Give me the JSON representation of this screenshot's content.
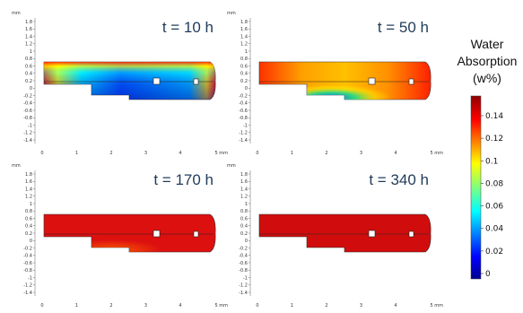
{
  "panels": [
    {
      "label": "t = 10 h",
      "mode": "low"
    },
    {
      "label": "t = 50 h",
      "mode": "mid"
    },
    {
      "label": "t = 170 h",
      "mode": "high"
    },
    {
      "label": "t = 340 h",
      "mode": "full"
    }
  ],
  "axes": {
    "unit": "mm",
    "y_ticks": [
      "1.8",
      "1.6",
      "1.4",
      "1.2",
      "1",
      "0.8",
      "0.6",
      "0.4",
      "0.2",
      "0",
      "-0.2",
      "-0.4",
      "-0.6",
      "-0.8",
      "-1",
      "-1.2",
      "-1.4"
    ],
    "x_ticks": [
      "0",
      "1",
      "2",
      "3",
      "4",
      "5 mm"
    ]
  },
  "colorbar": {
    "title_lines": [
      "Water",
      "Absorption",
      "(w%)"
    ],
    "ticks": [
      "0.14",
      "0.12",
      "0.1",
      "0.08",
      "0.06",
      "0.04",
      "0.02",
      "0"
    ]
  },
  "colors": {
    "frame": "#9db3c9",
    "label": "#1f3b5a",
    "cb_top": "#b30000",
    "cb_bottom": "#00008f"
  }
}
